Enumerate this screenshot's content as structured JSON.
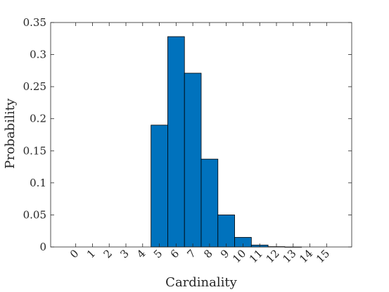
{
  "chart_data": {
    "type": "bar",
    "title": "",
    "xlabel": "Cardinality",
    "ylabel": "Probability",
    "categories": [
      "0",
      "1",
      "2",
      "3",
      "4",
      "5",
      "6",
      "7",
      "8",
      "9",
      "10",
      "11",
      "12",
      "13",
      "14",
      "15"
    ],
    "values": [
      0,
      0,
      0,
      0,
      0,
      0.19,
      0.328,
      0.271,
      0.137,
      0.05,
      0.015,
      0.003,
      0.0005,
      0.0001,
      0,
      0
    ],
    "ylim": [
      0,
      0.35
    ],
    "yticks": [
      0,
      0.05,
      0.1,
      0.15,
      0.2,
      0.25,
      0.3,
      0.35
    ],
    "ytick_labels": [
      "0",
      "0.05",
      "0.1",
      "0.15",
      "0.2",
      "0.25",
      "0.3",
      "0.35"
    ],
    "bar_color": "#0072BD",
    "grid": false,
    "legend": "none"
  }
}
